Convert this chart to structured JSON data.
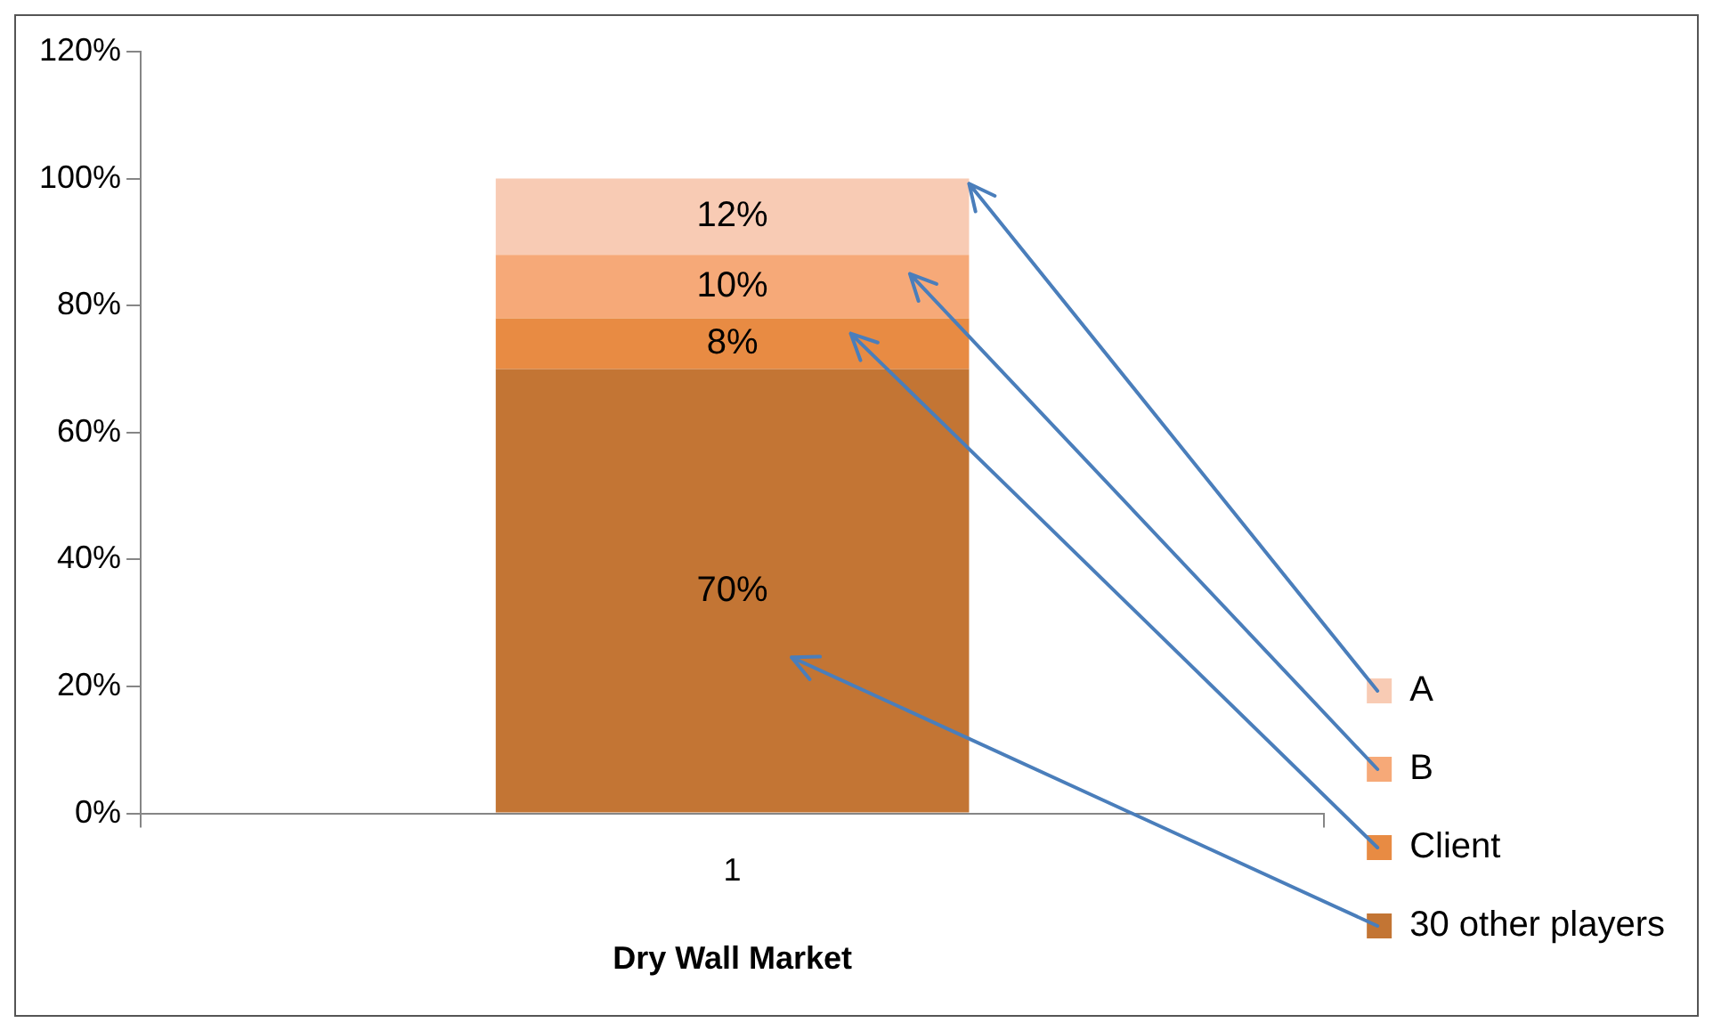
{
  "chart_data": {
    "type": "bar",
    "stacked": true,
    "xlabel": "Dry Wall Market",
    "categories": [
      "1"
    ],
    "series": [
      {
        "name": "30 other players",
        "color": "#c37534",
        "values": [
          70
        ],
        "value_labels": [
          "70%"
        ]
      },
      {
        "name": "Client",
        "color": "#e88b43",
        "values": [
          8
        ],
        "value_labels": [
          "8%"
        ]
      },
      {
        "name": "B",
        "color": "#f6a978",
        "values": [
          10
        ],
        "value_labels": [
          "10%"
        ]
      },
      {
        "name": "A",
        "color": "#f8cbb4",
        "values": [
          12
        ],
        "value_labels": [
          "12%"
        ]
      }
    ],
    "ylim": [
      0,
      120
    ],
    "yticks": [
      {
        "value": 0,
        "label": "0%"
      },
      {
        "value": 20,
        "label": "20%"
      },
      {
        "value": 40,
        "label": "40%"
      },
      {
        "value": 60,
        "label": "60%"
      },
      {
        "value": 80,
        "label": "80%"
      },
      {
        "value": 100,
        "label": "100%"
      },
      {
        "value": 120,
        "label": "120%"
      }
    ],
    "grid": false,
    "legend": "right"
  }
}
